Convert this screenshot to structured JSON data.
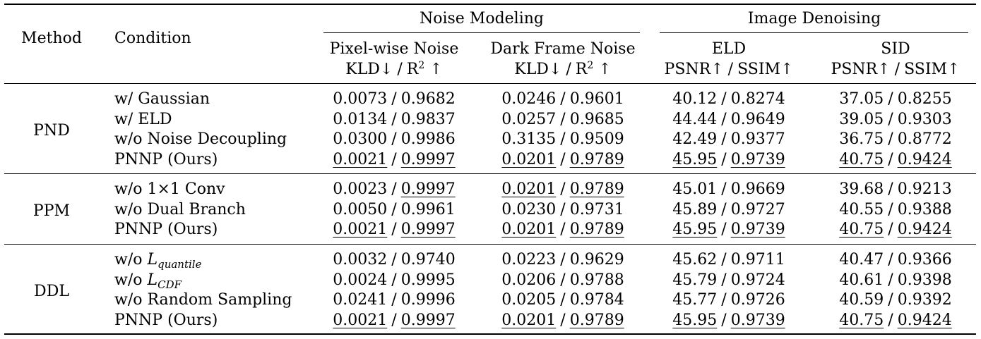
{
  "header": {
    "method": "Method",
    "condition": "Condition",
    "group_noise": "Noise Modeling",
    "group_denoise": "Image Denoising",
    "columns": [
      {
        "name": "Pixel-wise Noise",
        "metric_a": "KLD↓",
        "metric_b_base": "R",
        "metric_b_sup": "2",
        "metric_b_arrow": " ↑"
      },
      {
        "name": "Dark Frame Noise",
        "metric_a": "KLD↓",
        "metric_b_base": "R",
        "metric_b_sup": "2",
        "metric_b_arrow": " ↑"
      },
      {
        "name": "ELD",
        "metric_a": "PSNR↑",
        "metric_b_base": "SSIM↑",
        "metric_b_sup": "",
        "metric_b_arrow": ""
      },
      {
        "name": "SID",
        "metric_a": "PSNR↑",
        "metric_b_base": "SSIM↑",
        "metric_b_sup": "",
        "metric_b_arrow": ""
      }
    ]
  },
  "groups": [
    {
      "method": "PND",
      "rows": [
        {
          "condition": "w/ Gaussian",
          "cells": [
            [
              "0.0073",
              "0.9682"
            ],
            [
              "0.0246",
              "0.9601"
            ],
            [
              "40.12",
              "0.8274"
            ],
            [
              "37.05",
              "0.8255"
            ]
          ],
          "u": [
            [
              0,
              0
            ],
            [
              0,
              0
            ],
            [
              0,
              0
            ],
            [
              0,
              0
            ]
          ]
        },
        {
          "condition": "w/ ELD",
          "cells": [
            [
              "0.0134",
              "0.9837"
            ],
            [
              "0.0257",
              "0.9685"
            ],
            [
              "44.44",
              "0.9649"
            ],
            [
              "39.05",
              "0.9303"
            ]
          ],
          "u": [
            [
              0,
              0
            ],
            [
              0,
              0
            ],
            [
              0,
              0
            ],
            [
              0,
              0
            ]
          ]
        },
        {
          "condition": "w/o Noise Decoupling",
          "cells": [
            [
              "0.0300",
              "0.9986"
            ],
            [
              "0.3135",
              "0.9509"
            ],
            [
              "42.49",
              "0.9377"
            ],
            [
              "36.75",
              "0.8772"
            ]
          ],
          "u": [
            [
              0,
              0
            ],
            [
              0,
              0
            ],
            [
              0,
              0
            ],
            [
              0,
              0
            ]
          ]
        },
        {
          "condition": "PNNP (Ours)",
          "cells": [
            [
              "0.0021",
              "0.9997"
            ],
            [
              "0.0201",
              "0.9789"
            ],
            [
              "45.95",
              "0.9739"
            ],
            [
              "40.75",
              "0.9424"
            ]
          ],
          "u": [
            [
              1,
              1
            ],
            [
              1,
              1
            ],
            [
              1,
              1
            ],
            [
              1,
              1
            ]
          ]
        }
      ]
    },
    {
      "method": "PPM",
      "rows": [
        {
          "condition": "w/o 1×1 Conv",
          "cells": [
            [
              "0.0023",
              "0.9997"
            ],
            [
              "0.0201",
              "0.9789"
            ],
            [
              "45.01",
              "0.9669"
            ],
            [
              "39.68",
              "0.9213"
            ]
          ],
          "u": [
            [
              0,
              1
            ],
            [
              1,
              1
            ],
            [
              0,
              0
            ],
            [
              0,
              0
            ]
          ]
        },
        {
          "condition": "w/o Dual Branch",
          "cells": [
            [
              "0.0050",
              "0.9961"
            ],
            [
              "0.0230",
              "0.9731"
            ],
            [
              "45.89",
              "0.9727"
            ],
            [
              "40.55",
              "0.9388"
            ]
          ],
          "u": [
            [
              0,
              0
            ],
            [
              0,
              0
            ],
            [
              0,
              0
            ],
            [
              0,
              0
            ]
          ]
        },
        {
          "condition": "PNNP (Ours)",
          "cells": [
            [
              "0.0021",
              "0.9997"
            ],
            [
              "0.0201",
              "0.9789"
            ],
            [
              "45.95",
              "0.9739"
            ],
            [
              "40.75",
              "0.9424"
            ]
          ],
          "u": [
            [
              1,
              1
            ],
            [
              1,
              1
            ],
            [
              1,
              1
            ],
            [
              1,
              1
            ]
          ]
        }
      ]
    },
    {
      "method": "DDL",
      "rows": [
        {
          "condition": "w/o ",
          "cond_sym": "L",
          "cond_sub": "quantile",
          "cells": [
            [
              "0.0032",
              "0.9740"
            ],
            [
              "0.0223",
              "0.9629"
            ],
            [
              "45.62",
              "0.9711"
            ],
            [
              "40.47",
              "0.9366"
            ]
          ],
          "u": [
            [
              0,
              0
            ],
            [
              0,
              0
            ],
            [
              0,
              0
            ],
            [
              0,
              0
            ]
          ]
        },
        {
          "condition": "w/o ",
          "cond_sym": "L",
          "cond_sub": "CDF",
          "cells": [
            [
              "0.0024",
              "0.9995"
            ],
            [
              "0.0206",
              "0.9788"
            ],
            [
              "45.79",
              "0.9724"
            ],
            [
              "40.61",
              "0.9398"
            ]
          ],
          "u": [
            [
              0,
              0
            ],
            [
              0,
              0
            ],
            [
              0,
              0
            ],
            [
              0,
              0
            ]
          ]
        },
        {
          "condition": "w/o Random Sampling",
          "cells": [
            [
              "0.0241",
              "0.9996"
            ],
            [
              "0.0205",
              "0.9784"
            ],
            [
              "45.77",
              "0.9726"
            ],
            [
              "40.59",
              "0.9392"
            ]
          ],
          "u": [
            [
              0,
              0
            ],
            [
              0,
              0
            ],
            [
              0,
              0
            ],
            [
              0,
              0
            ]
          ]
        },
        {
          "condition": "PNNP (Ours)",
          "cells": [
            [
              "0.0021",
              "0.9997"
            ],
            [
              "0.0201",
              "0.9789"
            ],
            [
              "45.95",
              "0.9739"
            ],
            [
              "40.75",
              "0.9424"
            ]
          ],
          "u": [
            [
              1,
              1
            ],
            [
              1,
              1
            ],
            [
              1,
              1
            ],
            [
              1,
              1
            ]
          ]
        }
      ]
    }
  ]
}
